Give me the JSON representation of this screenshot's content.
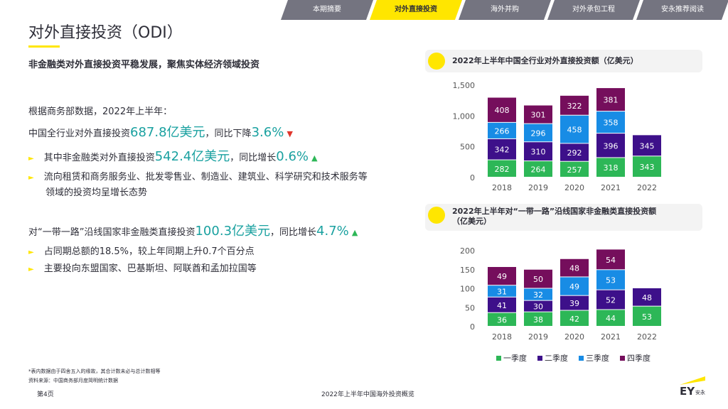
{
  "tabs": [
    {
      "label": "本期摘要",
      "active": false
    },
    {
      "label": "对外直接投资",
      "active": true
    },
    {
      "label": "海外并购",
      "active": false
    },
    {
      "label": "对外承包工程",
      "active": false
    },
    {
      "label": "安永推荐阅读",
      "active": false
    }
  ],
  "page": {
    "title": "对外直接投资（ODI）",
    "subtitle": "非金融类对外直接投资平稳发展，聚焦实体经济领域投资",
    "intro": "根据商务部数据，2022年上半年：",
    "line1": {
      "pre": "中国全行业对外直接投资",
      "value": "687.8亿美元",
      "mid": "，同比下降",
      "pct": "3.6%",
      "arrow": "▼"
    },
    "bullet1": {
      "pre": "其中非金融类对外直接投资",
      "value": "542.4亿美元",
      "mid": "，同比增长",
      "pct": "0.6%",
      "arrow": "▲"
    },
    "bullet2_l1": "流向租赁和商务服务业、批发零售业、制造业、建筑业、科学研究和技术服务等",
    "bullet2_l2": "领域的投资均呈增长态势",
    "line2": {
      "pre": "对“一带一路”沿线国家非金融类直接投资",
      "value": "100.3亿美元",
      "mid": "，同比增长",
      "pct": "4.7%",
      "arrow": "▲"
    },
    "bullet3": "占同期总额的18.5%，较上年同期上升0.7个百分点",
    "bullet4": "主要投向东盟国家、巴基斯坦、阿联酋和孟加拉国等",
    "bullet_marker": "►"
  },
  "chart_data": [
    {
      "type": "bar",
      "stacked": true,
      "title": "2022年上半年中国全行业对外直接投资额（亿美元）",
      "categories": [
        "2018",
        "2019",
        "2020",
        "2021",
        "2022"
      ],
      "ylim": [
        0,
        1500
      ],
      "yticks": [
        0,
        500,
        1000,
        1500
      ],
      "ytick_labels": [
        "0",
        "500",
        "1,000",
        "1,500"
      ],
      "series": [
        {
          "name": "一季度",
          "color": "#2db757",
          "values": [
            282,
            264,
            257,
            318,
            343
          ]
        },
        {
          "name": "二季度",
          "color": "#3d108a",
          "values": [
            342,
            310,
            292,
            396,
            345
          ]
        },
        {
          "name": "三季度",
          "color": "#188ce5",
          "values": [
            266,
            296,
            458,
            358,
            null
          ]
        },
        {
          "name": "四季度",
          "color": "#750e5c",
          "values": [
            408,
            301,
            322,
            381,
            null
          ]
        }
      ]
    },
    {
      "type": "bar",
      "stacked": true,
      "title": "2022年上半年对“一带一路”沿线国家非金融类直接投资额",
      "title2": "（亿美元）",
      "categories": [
        "2018",
        "2019",
        "2020",
        "2021",
        "2022"
      ],
      "ylim": [
        0,
        200
      ],
      "yticks": [
        0,
        50,
        100,
        150,
        200
      ],
      "ytick_labels": [
        "0",
        "50",
        "100",
        "150",
        "200"
      ],
      "series": [
        {
          "name": "一季度",
          "color": "#2db757",
          "values": [
            36,
            38,
            42,
            44,
            53
          ]
        },
        {
          "name": "二季度",
          "color": "#3d108a",
          "values": [
            41,
            30,
            39,
            52,
            48
          ]
        },
        {
          "name": "三季度",
          "color": "#188ce5",
          "values": [
            31,
            32,
            49,
            53,
            null
          ]
        },
        {
          "name": "四季度",
          "color": "#750e5c",
          "values": [
            49,
            50,
            48,
            54,
            null
          ]
        }
      ],
      "legend": "bottom"
    }
  ],
  "footer": {
    "note": "*表内数据由于四舍五入的缘故，其合计数未必与总计数相等",
    "source": "资料来源：中国商务部月度简明统计数据",
    "page_no": "第4页",
    "center": "2022年上半年中国海外投资概览",
    "logo_text": "EY",
    "logo_sub": "安永"
  }
}
